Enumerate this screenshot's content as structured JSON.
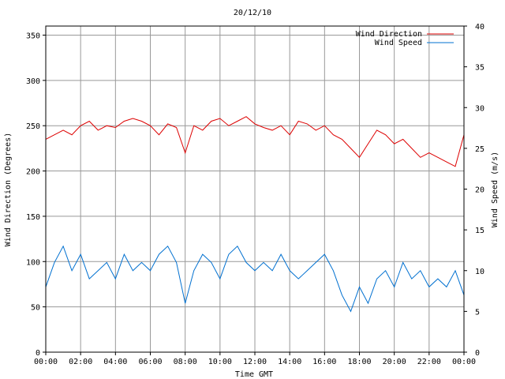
{
  "chart_data": {
    "type": "line",
    "title": "20/12/10",
    "xlabel": "Time GMT",
    "ylabel_left": "Wind Direction (Degrees)",
    "ylabel_right": "Wind Speed (m/s)",
    "x_range_hours": [
      0,
      24
    ],
    "x_tick_labels": [
      "00:00",
      "02:00",
      "04:00",
      "06:00",
      "08:00",
      "10:00",
      "12:00",
      "14:00",
      "16:00",
      "18:00",
      "20:00",
      "22:00",
      "00:00"
    ],
    "ylim_left": [
      0,
      360
    ],
    "y_ticks_left": [
      0,
      50,
      100,
      150,
      200,
      250,
      300,
      350
    ],
    "ylim_right": [
      0,
      40
    ],
    "y_ticks_right": [
      0,
      5,
      10,
      15,
      20,
      25,
      30,
      35,
      40
    ],
    "grid": true,
    "legend_position": "top-right",
    "series": [
      {
        "name": "Wind Direction",
        "axis": "left",
        "color": "#dd0000",
        "x": [
          0,
          0.5,
          1,
          1.5,
          2,
          2.5,
          3,
          3.5,
          4,
          4.5,
          5,
          5.5,
          6,
          6.5,
          7,
          7.5,
          8,
          8.5,
          9,
          9.5,
          10,
          10.5,
          11,
          11.5,
          12,
          12.5,
          13,
          13.5,
          14,
          14.5,
          15,
          15.5,
          16,
          16.5,
          17,
          17.5,
          18,
          18.5,
          19,
          19.5,
          20,
          20.5,
          21,
          21.5,
          22,
          22.5,
          23,
          23.5,
          24
        ],
        "values": [
          235,
          240,
          245,
          240,
          250,
          255,
          245,
          250,
          248,
          255,
          258,
          255,
          250,
          240,
          252,
          248,
          220,
          250,
          245,
          255,
          258,
          250,
          255,
          260,
          252,
          248,
          245,
          250,
          240,
          255,
          252,
          245,
          250,
          240,
          235,
          225,
          215,
          230,
          245,
          240,
          230,
          235,
          225,
          215,
          220,
          215,
          210,
          205,
          240
        ]
      },
      {
        "name": "Wind Speed",
        "axis": "right",
        "color": "#0070d0",
        "x": [
          0,
          0.5,
          1,
          1.5,
          2,
          2.5,
          3,
          3.5,
          4,
          4.5,
          5,
          5.5,
          6,
          6.5,
          7,
          7.5,
          8,
          8.5,
          9,
          9.5,
          10,
          10.5,
          11,
          11.5,
          12,
          12.5,
          13,
          13.5,
          14,
          14.5,
          15,
          15.5,
          16,
          16.5,
          17,
          17.5,
          18,
          18.5,
          19,
          19.5,
          20,
          20.5,
          21,
          21.5,
          22,
          22.5,
          23,
          23.5,
          24
        ],
        "values": [
          8,
          11,
          13,
          10,
          12,
          9,
          10,
          11,
          9,
          12,
          10,
          11,
          10,
          12,
          13,
          11,
          6,
          10,
          12,
          11,
          9,
          12,
          13,
          11,
          10,
          11,
          10,
          12,
          10,
          9,
          10,
          11,
          12,
          10,
          7,
          5,
          8,
          6,
          9,
          10,
          8,
          11,
          9,
          10,
          8,
          9,
          8,
          10,
          7
        ]
      }
    ]
  }
}
